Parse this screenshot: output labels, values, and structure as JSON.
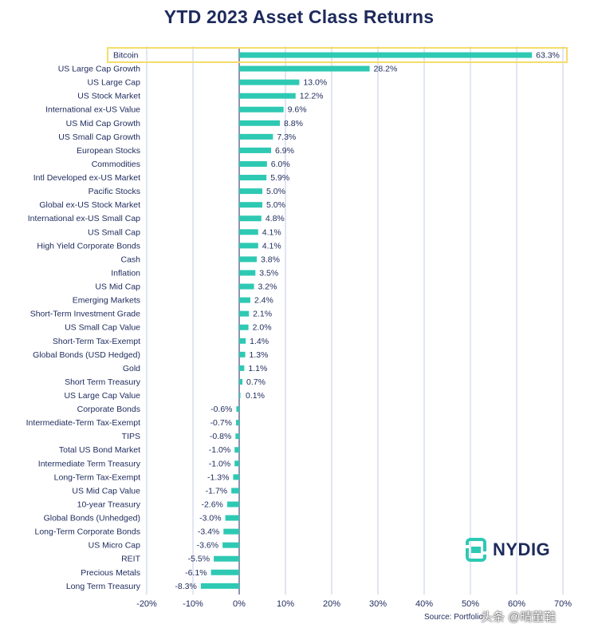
{
  "chart_data": {
    "type": "bar",
    "orientation": "horizontal",
    "title": "YTD 2023 Asset Class Returns",
    "xlabel": "",
    "ylabel": "",
    "xlim": [
      -20,
      70
    ],
    "x_ticks": [
      "-20%",
      "-10%",
      "0%",
      "10%",
      "20%",
      "30%",
      "40%",
      "50%",
      "60%",
      "70%"
    ],
    "x_tick_values": [
      -20,
      -10,
      0,
      10,
      20,
      30,
      40,
      50,
      60,
      70
    ],
    "highlight": "Bitcoin",
    "bar_color": "#2ec9b3",
    "highlight_color": "#f4dd6a",
    "grid_color": "#c6cbe8",
    "categories": [
      "Bitcoin",
      "US Large Cap Growth",
      "US Large Cap",
      "US Stock Market",
      "International ex-US Value",
      "US Mid Cap Growth",
      "US Small Cap Growth",
      "European Stocks",
      "Commodities",
      "Intl Developed ex-US Market",
      "Pacific Stocks",
      "Global ex-US Stock Market",
      "International ex-US Small Cap",
      "US Small Cap",
      "High Yield Corporate Bonds",
      "Cash",
      "Inflation",
      "US Mid Cap",
      "Emerging Markets",
      "Short-Term Investment Grade",
      "US Small Cap Value",
      "Short-Term Tax-Exempt",
      "Global Bonds (USD Hedged)",
      "Gold",
      "Short Term Treasury",
      "US Large Cap Value",
      "Corporate Bonds",
      "Intermediate-Term Tax-Exempt",
      "TIPS",
      "Total US Bond Market",
      "Intermediate Term Treasury",
      "Long-Term Tax-Exempt",
      "US Mid Cap Value",
      "10-year Treasury",
      "Global Bonds (Unhedged)",
      "Long-Term Corporate Bonds",
      "US Micro Cap",
      "REIT",
      "Precious Metals",
      "Long Term Treasury"
    ],
    "values": [
      63.3,
      28.2,
      13.0,
      12.2,
      9.6,
      8.8,
      7.3,
      6.9,
      6.0,
      5.9,
      5.0,
      5.0,
      4.8,
      4.1,
      4.1,
      3.8,
      3.5,
      3.2,
      2.4,
      2.1,
      2.0,
      1.4,
      1.3,
      1.1,
      0.7,
      0.1,
      -0.6,
      -0.7,
      -0.8,
      -1.0,
      -1.0,
      -1.3,
      -1.7,
      -2.6,
      -3.0,
      -3.4,
      -3.6,
      -5.5,
      -6.1,
      -8.3
    ],
    "value_labels": [
      "63.3%",
      "28.2%",
      "13.0%",
      "12.2%",
      "9.6%",
      "8.8%",
      "7.3%",
      "6.9%",
      "6.0%",
      "5.9%",
      "5.0%",
      "5.0%",
      "4.8%",
      "4.1%",
      "4.1%",
      "3.8%",
      "3.5%",
      "3.2%",
      "2.4%",
      "2.1%",
      "2.0%",
      "1.4%",
      "1.3%",
      "1.1%",
      "0.7%",
      "0.1%",
      "-0.6%",
      "-0.7%",
      "-0.8%",
      "-1.0%",
      "-1.0%",
      "-1.3%",
      "-1.7%",
      "-2.6%",
      "-3.0%",
      "-3.4%",
      "-3.6%",
      "-5.5%",
      "-6.1%",
      "-8.3%"
    ]
  },
  "brand": {
    "logo_text": "NYDIG",
    "logo_color": "#2ec9b3"
  },
  "source": "Source: Portfolio",
  "watermark": "头条 @晴董鞋"
}
